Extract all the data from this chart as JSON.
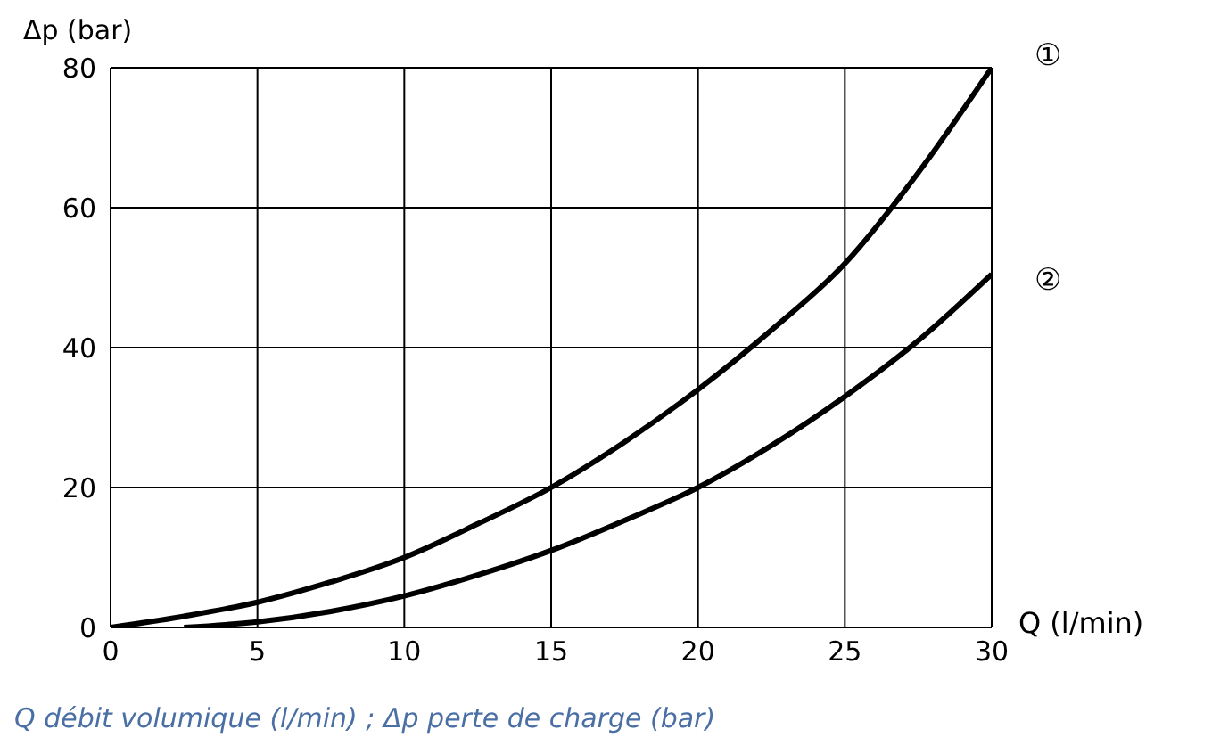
{
  "chart_data": {
    "type": "line",
    "xlabel": "Q (l/min)",
    "ylabel": "Δp (bar)",
    "annotations": [
      "Q débit volumique (l/min) ; Δp perte de charge (bar)"
    ],
    "xlim": [
      0,
      30
    ],
    "xticks": [
      0,
      5,
      10,
      15,
      20,
      25,
      30
    ],
    "ylim": [
      0,
      80
    ],
    "yticks": [
      0,
      20,
      40,
      60,
      80
    ],
    "grid": true,
    "marker": "none",
    "line_style": "solid",
    "series": [
      {
        "name": "①",
        "color": "#000000",
        "x": [
          0,
          2.5,
          5,
          7.5,
          10,
          12.5,
          15,
          17.5,
          20,
          22.5,
          25,
          27.5,
          30
        ],
        "values": [
          0,
          1.6,
          3.6,
          6.5,
          10,
          14.8,
          20,
          26.5,
          34,
          42.5,
          52,
          65,
          80
        ]
      },
      {
        "name": "②",
        "color": "#000000",
        "x": [
          2.5,
          5,
          7.5,
          10,
          12.5,
          15,
          17.5,
          20,
          22.5,
          25,
          27.5,
          30
        ],
        "values": [
          0,
          0.8,
          2.3,
          4.5,
          7.5,
          11,
          15.3,
          20,
          26,
          33,
          41,
          50.5
        ]
      }
    ]
  }
}
